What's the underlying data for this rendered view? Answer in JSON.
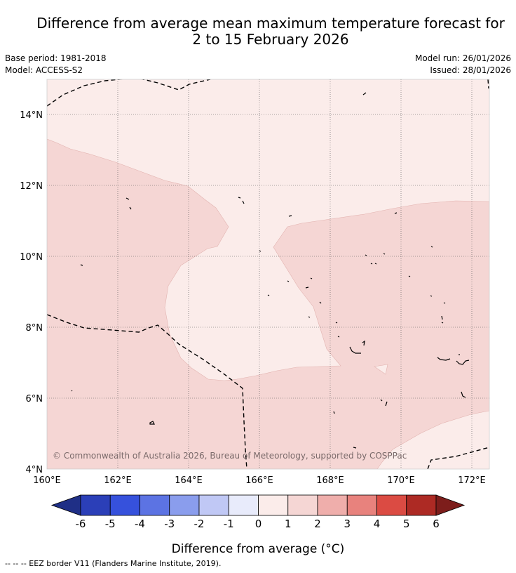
{
  "header": {
    "title_line1": "Difference from average mean maximum temperature forecast for",
    "title_line2": "2 to 15 February 2026",
    "base_period": "Base period: 1981-2018",
    "model": "Model: ACCESS-S2",
    "model_run": "Model run: 26/01/2026",
    "issued": "Issued: 28/01/2026"
  },
  "map": {
    "lon_range": [
      160,
      172.5
    ],
    "lat_range": [
      4,
      15
    ],
    "lon_ticks": [
      "160°E",
      "162°E",
      "164°E",
      "166°E",
      "168°E",
      "170°E",
      "172°E"
    ],
    "lat_ticks": [
      "4°N",
      "6°N",
      "8°N",
      "10°N",
      "12°N",
      "14°N"
    ],
    "copyright": "© Commonwealth of Australia 2026, Bureau of Meteorology, supported by COSPPac",
    "anomaly_classes": [
      "0 to 1",
      "1 to 2"
    ]
  },
  "legend": {
    "ticks": [
      "-6",
      "-5",
      "-4",
      "-3",
      "-2",
      "-1",
      "0",
      "1",
      "2",
      "3",
      "4",
      "5",
      "6"
    ],
    "colors": [
      "#1f2f86",
      "#2b3fb8",
      "#3651dc",
      "#5c73e3",
      "#8a9ded",
      "#c0c8f5",
      "#e8ebfb",
      "#fbecea",
      "#f5d6d4",
      "#efaeab",
      "#e8827d",
      "#db4b43",
      "#ad2a24",
      "#7d1d1b"
    ],
    "label": "Difference from average (°C)"
  },
  "footer": {
    "eez_note": "-- -- -- EEZ border V11 (Flanders Marine Institute, 2019)."
  }
}
